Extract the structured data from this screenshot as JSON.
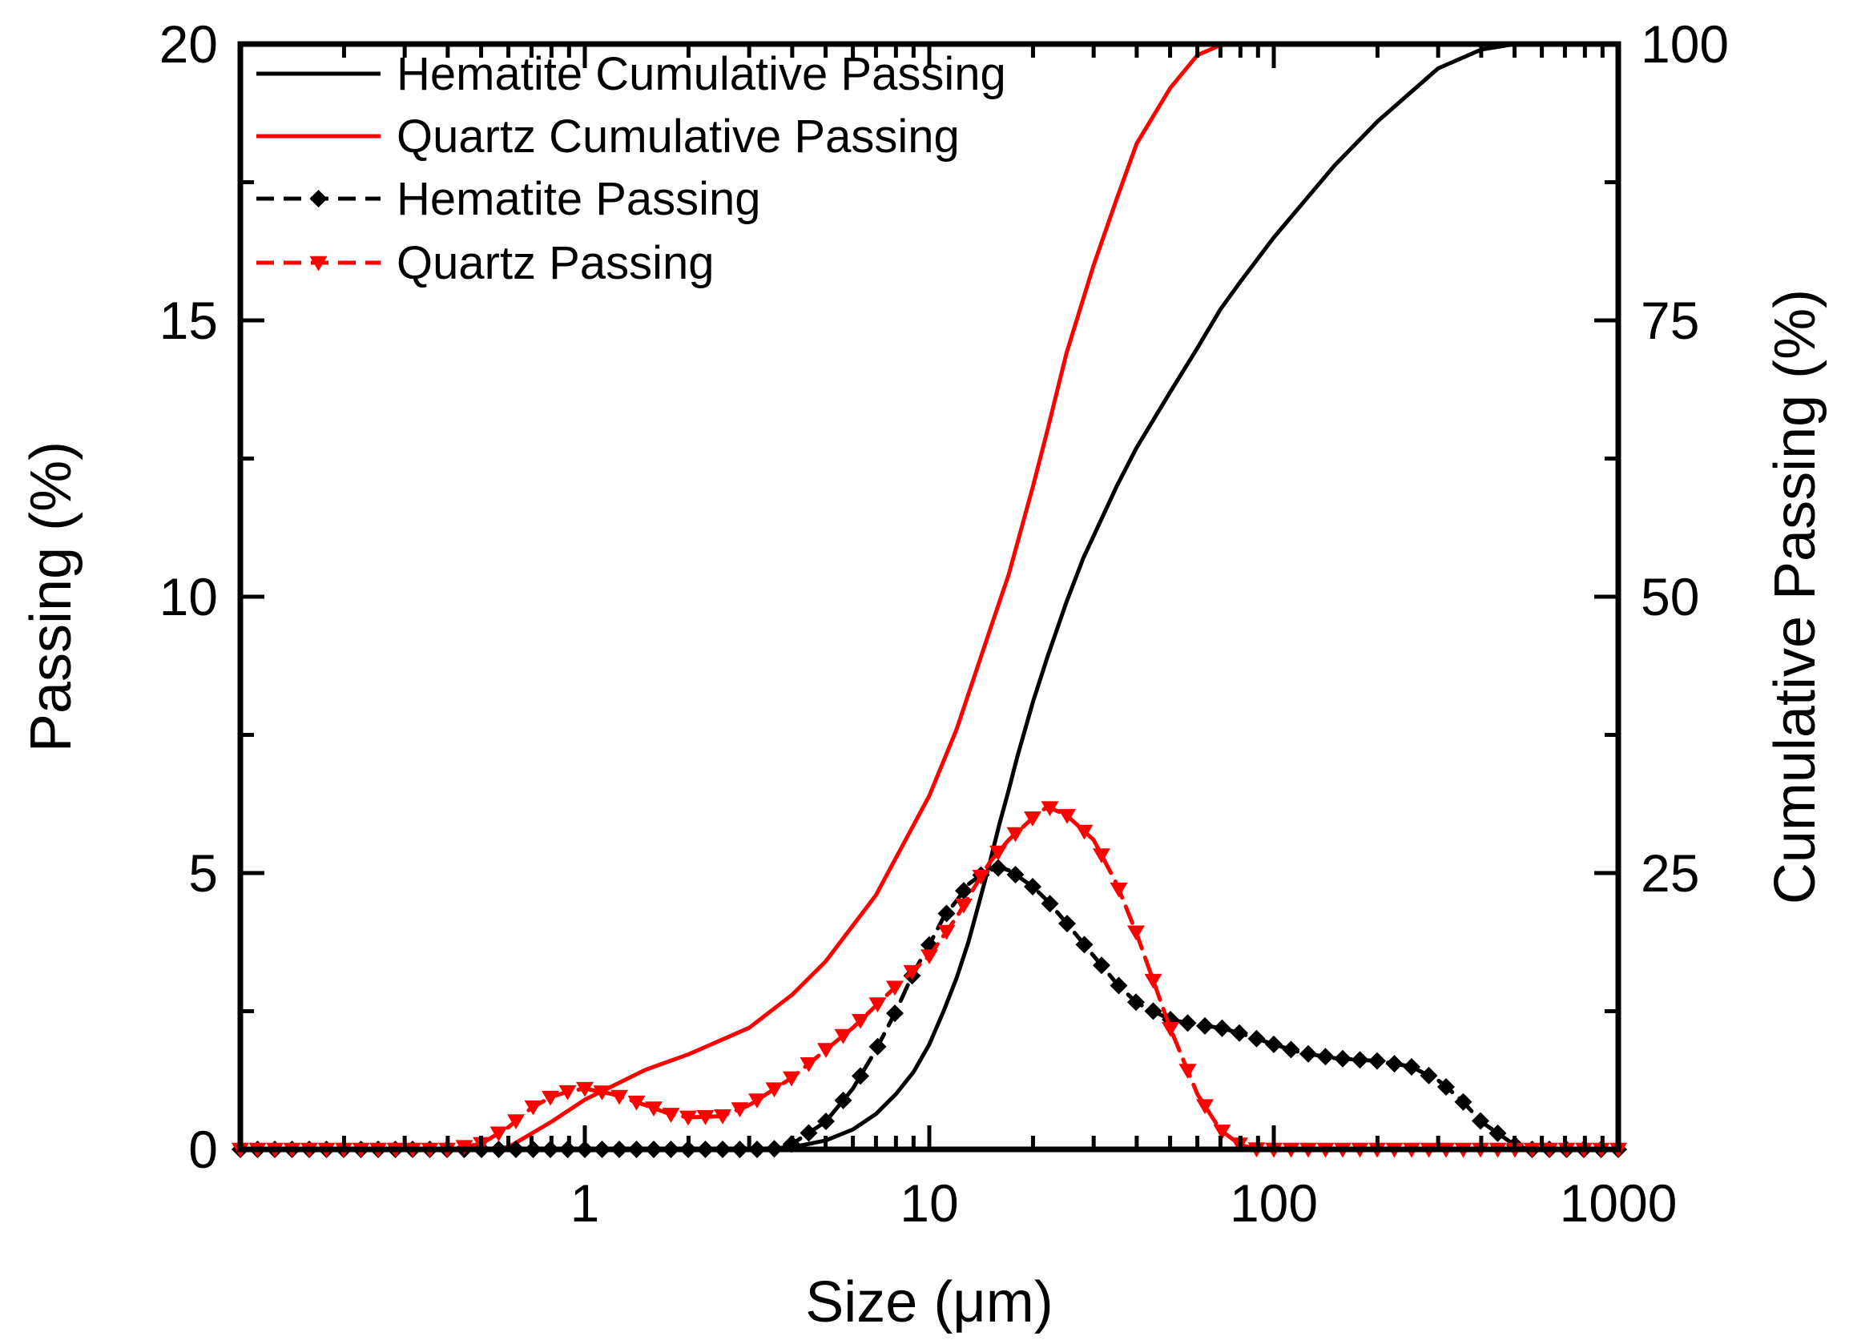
{
  "chart_data": {
    "type": "line",
    "x_axis": {
      "label": "Size (μm)",
      "scale": "log",
      "range": [
        0.1,
        1000
      ],
      "tick_labels": [
        {
          "value": 1,
          "label": "1"
        },
        {
          "value": 10,
          "label": "10"
        },
        {
          "value": 100,
          "label": "100"
        },
        {
          "value": 1000,
          "label": "1000"
        }
      ]
    },
    "y_left": {
      "label": "Passing (%)",
      "range": [
        0,
        20
      ],
      "tick_labels": [
        {
          "value": 0,
          "label": "0"
        },
        {
          "value": 5,
          "label": "5"
        },
        {
          "value": 10,
          "label": "10"
        },
        {
          "value": 15,
          "label": "15"
        },
        {
          "value": 20,
          "label": "20"
        }
      ]
    },
    "y_right": {
      "label": "Cumulative Passing (%)",
      "range": [
        0,
        100
      ],
      "tick_labels": [
        {
          "value": 25,
          "label": "25"
        },
        {
          "value": 50,
          "label": "50"
        },
        {
          "value": 75,
          "label": "75"
        },
        {
          "value": 100,
          "label": "100"
        }
      ]
    },
    "legend_position": "top-left",
    "series": [
      {
        "name": "Hematite Cumulative Passing",
        "axis": "right",
        "color": "#000000",
        "style": "solid",
        "marker": "none",
        "points": [
          [
            0.1,
            0
          ],
          [
            3,
            0
          ],
          [
            4,
            0.2
          ],
          [
            5,
            0.8
          ],
          [
            6,
            1.8
          ],
          [
            7,
            3.2
          ],
          [
            8,
            5
          ],
          [
            9,
            7
          ],
          [
            10,
            9.5
          ],
          [
            11,
            12.5
          ],
          [
            12,
            15.5
          ],
          [
            13,
            18.8
          ],
          [
            14,
            22.5
          ],
          [
            15,
            26
          ],
          [
            16,
            29.5
          ],
          [
            17,
            32.5
          ],
          [
            18,
            35.5
          ],
          [
            20,
            40.5
          ],
          [
            22,
            44.5
          ],
          [
            25,
            49.5
          ],
          [
            28,
            53.5
          ],
          [
            30,
            55.5
          ],
          [
            35,
            60
          ],
          [
            40,
            63.5
          ],
          [
            50,
            68.5
          ],
          [
            60,
            72.5
          ],
          [
            70,
            76
          ],
          [
            80,
            78.5
          ],
          [
            100,
            82.5
          ],
          [
            150,
            89
          ],
          [
            200,
            93
          ],
          [
            300,
            97.8
          ],
          [
            400,
            99.5
          ],
          [
            500,
            100
          ],
          [
            1000,
            100
          ]
        ]
      },
      {
        "name": "Quartz Cumulative Passing",
        "axis": "right",
        "color": "#ff0000",
        "style": "solid",
        "marker": "none",
        "points": [
          [
            0.1,
            0
          ],
          [
            0.5,
            0
          ],
          [
            0.6,
            0.2
          ],
          [
            0.8,
            2.5
          ],
          [
            1,
            4.5
          ],
          [
            1.5,
            7.2
          ],
          [
            2,
            8.6
          ],
          [
            3,
            11
          ],
          [
            4,
            14
          ],
          [
            5,
            17
          ],
          [
            7,
            23
          ],
          [
            10,
            32
          ],
          [
            12,
            38
          ],
          [
            15,
            47
          ],
          [
            17,
            52
          ],
          [
            20,
            60
          ],
          [
            22,
            65
          ],
          [
            25,
            72
          ],
          [
            30,
            80
          ],
          [
            35,
            86
          ],
          [
            40,
            91
          ],
          [
            50,
            96
          ],
          [
            60,
            99
          ],
          [
            70,
            99.9
          ],
          [
            80,
            100
          ],
          [
            1000,
            100
          ]
        ]
      },
      {
        "name": "Hematite Passing",
        "axis": "left",
        "color": "#000000",
        "style": "dashed",
        "marker": "diamond",
        "points": [
          [
            0.1,
            0
          ],
          [
            3.5,
            0
          ],
          [
            4,
            0.1
          ],
          [
            5,
            0.5
          ],
          [
            6,
            1.1
          ],
          [
            7,
            1.8
          ],
          [
            8,
            2.5
          ],
          [
            9,
            3.2
          ],
          [
            10,
            3.7
          ],
          [
            11,
            4.2
          ],
          [
            12,
            4.5
          ],
          [
            13,
            4.8
          ],
          [
            14,
            4.95
          ],
          [
            15,
            5.05
          ],
          [
            16,
            5.1
          ],
          [
            17,
            5.05
          ],
          [
            18,
            4.95
          ],
          [
            20,
            4.75
          ],
          [
            22,
            4.5
          ],
          [
            25,
            4.1
          ],
          [
            30,
            3.5
          ],
          [
            35,
            3.0
          ],
          [
            40,
            2.65
          ],
          [
            50,
            2.35
          ],
          [
            60,
            2.25
          ],
          [
            70,
            2.2
          ],
          [
            80,
            2.1
          ],
          [
            100,
            1.9
          ],
          [
            120,
            1.75
          ],
          [
            150,
            1.65
          ],
          [
            200,
            1.6
          ],
          [
            250,
            1.5
          ],
          [
            300,
            1.25
          ],
          [
            350,
            0.9
          ],
          [
            400,
            0.5
          ],
          [
            500,
            0.08
          ],
          [
            550,
            0
          ],
          [
            1000,
            0
          ]
        ]
      },
      {
        "name": "Quartz Passing",
        "axis": "left",
        "color": "#ff0000",
        "style": "dashed",
        "marker": "triangle-down",
        "points": [
          [
            0.1,
            0
          ],
          [
            0.4,
            0
          ],
          [
            0.5,
            0.1
          ],
          [
            0.6,
            0.4
          ],
          [
            0.7,
            0.75
          ],
          [
            0.8,
            0.95
          ],
          [
            0.9,
            1.05
          ],
          [
            1,
            1.1
          ],
          [
            1.2,
            1.0
          ],
          [
            1.5,
            0.8
          ],
          [
            1.8,
            0.62
          ],
          [
            2,
            0.58
          ],
          [
            2.5,
            0.6
          ],
          [
            3,
            0.8
          ],
          [
            4,
            1.3
          ],
          [
            5,
            1.8
          ],
          [
            6,
            2.2
          ],
          [
            7,
            2.6
          ],
          [
            8,
            2.95
          ],
          [
            10,
            3.5
          ],
          [
            12,
            4.2
          ],
          [
            14,
            4.9
          ],
          [
            15,
            5.2
          ],
          [
            17,
            5.6
          ],
          [
            20,
            6.0
          ],
          [
            22,
            6.2
          ],
          [
            25,
            6.05
          ],
          [
            30,
            5.6
          ],
          [
            35,
            4.8
          ],
          [
            40,
            3.9
          ],
          [
            45,
            3.0
          ],
          [
            50,
            2.2
          ],
          [
            60,
            1.0
          ],
          [
            70,
            0.35
          ],
          [
            80,
            0.08
          ],
          [
            90,
            0
          ],
          [
            1000,
            0
          ]
        ]
      }
    ]
  }
}
